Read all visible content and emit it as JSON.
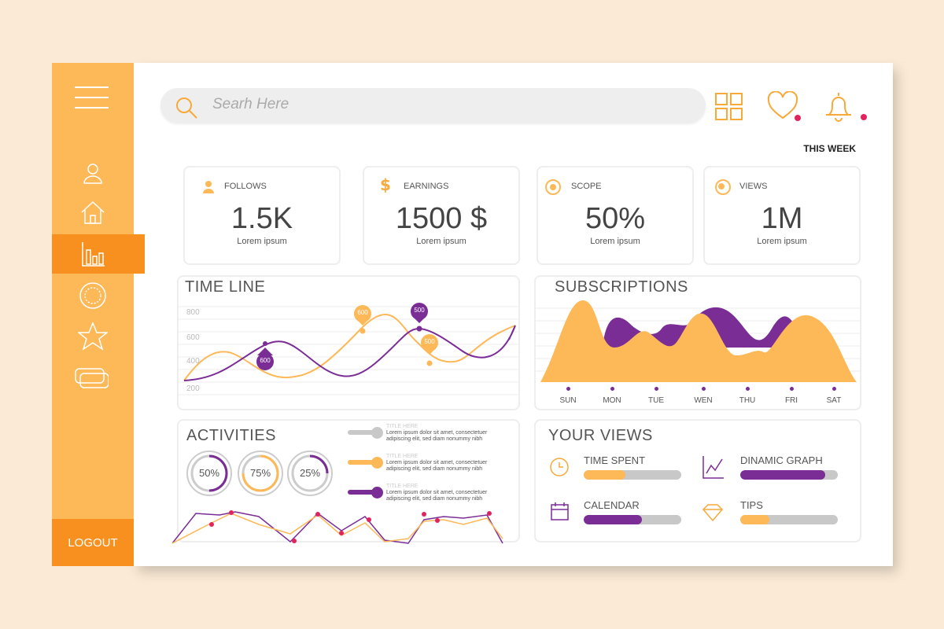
{
  "colors": {
    "orange": "#fdb858",
    "dark_orange": "#f7901e",
    "purple": "#7b2d96",
    "pink": "#e0245e"
  },
  "sidebar": {
    "items": [
      {
        "icon": "menu-icon"
      },
      {
        "icon": "user-icon"
      },
      {
        "icon": "home-icon"
      },
      {
        "icon": "bar-chart-icon",
        "active": true
      },
      {
        "icon": "sun-icon"
      },
      {
        "icon": "star-icon"
      },
      {
        "icon": "cards-icon"
      }
    ],
    "logout": "LOGOUT"
  },
  "search": {
    "placeholder": "Searh Here"
  },
  "header": {
    "icons": [
      "grid-icon",
      "heart-icon",
      "bell-icon"
    ],
    "period": "THIS WEEK"
  },
  "stats": [
    {
      "label": "FOLLOWS",
      "value": "1.5K",
      "sub": "Lorem ipsum",
      "icon": "user-icon"
    },
    {
      "label": "EARNINGS",
      "value": "1500 $",
      "sub": "Lorem ipsum",
      "icon": "dollar-icon"
    },
    {
      "label": "SCOPE",
      "value": "50%",
      "sub": "Lorem ipsum",
      "icon": "target-icon"
    },
    {
      "label": "VIEWS",
      "value": "1M",
      "sub": "Lorem ipsum",
      "icon": "eye-icon"
    }
  ],
  "timeline": {
    "title": "TIME LINE",
    "yticks": [
      "800",
      "600",
      "400",
      "200"
    ],
    "markers": [
      {
        "value": "600",
        "series": "purple"
      },
      {
        "value": "600",
        "series": "orange"
      },
      {
        "value": "500",
        "series": "purple"
      },
      {
        "value": "500",
        "series": "orange"
      }
    ]
  },
  "subscriptions": {
    "title": "SUBSCRIPTIONS",
    "days": [
      "SUN",
      "MON",
      "TUE",
      "WEN",
      "THU",
      "FRI",
      "SAT"
    ]
  },
  "activities": {
    "title": "ACTIVITIES",
    "rings": [
      {
        "label": "50%",
        "value": 50,
        "color": "#7b2d96"
      },
      {
        "label": "75%",
        "value": 75,
        "color": "#fdb858"
      },
      {
        "label": "25%",
        "value": 25,
        "color": "#7b2d96"
      }
    ],
    "items": [
      {
        "title": "TITLE HERE",
        "text1": "Lorem ipsum dolor sit amet, consectetuer",
        "text2": "adipiscing elit, sed diam nonummy nibh",
        "color": "#c8c8c8"
      },
      {
        "title": "TITLE HERE",
        "text1": "Lorem ipsum dolor sit amet, consectetuer",
        "text2": "adipiscing elit, sed diam nonummy nibh",
        "color": "#fdb858"
      },
      {
        "title": "TITLE HERE",
        "text1": "Lorem ipsum dolor sit amet, consectetuer",
        "text2": "adipiscing elit, sed diam nonummy nibh",
        "color": "#7b2d96"
      }
    ]
  },
  "your_views": {
    "title": "YOUR VIEWS",
    "items": [
      {
        "label": "TIME SPENT",
        "icon": "clock-icon",
        "progress": 0.43,
        "color": "#fdb858"
      },
      {
        "label": "DINAMIC GRAPH",
        "icon": "line-graph-icon",
        "progress": 0.87,
        "color": "#7b2d96"
      },
      {
        "label": "CALENDAR",
        "icon": "calendar-icon",
        "progress": 0.6,
        "color": "#7b2d96"
      },
      {
        "label": "TIPS",
        "icon": "diamond-icon",
        "progress": 0.3,
        "color": "#fdb858"
      }
    ]
  }
}
